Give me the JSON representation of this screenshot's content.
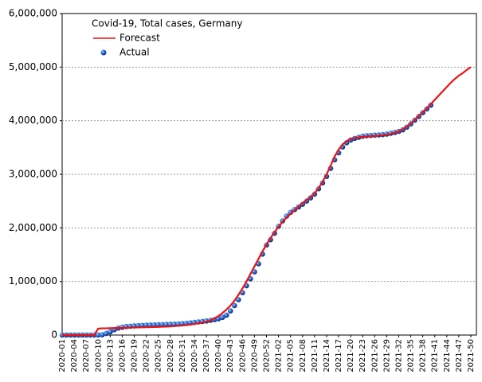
{
  "chart_data": {
    "type": "line-scatter",
    "title": "Covid-19, Total cases, Germany",
    "categories": [
      "2020-01",
      null,
      null,
      "2020-04",
      null,
      null,
      "2020-07",
      null,
      null,
      "2020-10",
      null,
      null,
      "2020-13",
      null,
      null,
      "2020-16",
      null,
      null,
      "2020-19",
      null,
      null,
      "2020-22",
      null,
      null,
      "2020-25",
      null,
      null,
      "2020-28",
      null,
      null,
      "2020-31",
      null,
      null,
      "2020-34",
      null,
      null,
      "2020-37",
      null,
      null,
      "2020-40",
      null,
      null,
      "2020-43",
      null,
      null,
      "2020-46",
      null,
      null,
      "2020-49",
      null,
      null,
      "2020-52",
      null,
      null,
      "2021-02",
      null,
      null,
      "2021-05",
      null,
      null,
      "2021-08",
      null,
      null,
      "2021-11",
      null,
      null,
      "2021-14",
      null,
      null,
      "2021-17",
      null,
      null,
      "2021-20",
      null,
      null,
      "2021-23",
      null,
      null,
      "2021-26",
      null,
      null,
      "2021-29",
      null,
      null,
      "2021-32",
      null,
      null,
      "2021-35",
      null,
      null,
      "2021-38",
      null,
      null,
      "2021-41",
      null,
      null,
      "2021-44",
      null,
      null,
      "2021-47",
      null,
      null,
      "2021-50"
    ],
    "series": [
      {
        "name": "Forecast",
        "color": "#ee1111",
        "style": "line",
        "values": [
          0,
          0,
          0,
          0,
          0,
          0,
          0,
          0,
          0,
          120000,
          125000,
          125000,
          128000,
          130000,
          132000,
          134000,
          136000,
          138000,
          140000,
          142000,
          144000,
          146000,
          148000,
          150000,
          152000,
          155000,
          158000,
          162000,
          167000,
          172000,
          178000,
          185000,
          195000,
          205000,
          218000,
          232000,
          250000,
          275000,
          310000,
          355000,
          410000,
          475000,
          550000,
          640000,
          750000,
          870000,
          1000000,
          1140000,
          1280000,
          1420000,
          1560000,
          1690000,
          1810000,
          1920000,
          2020000,
          2110000,
          2190000,
          2260000,
          2330000,
          2400000,
          2460000,
          2520000,
          2580000,
          2650000,
          2740000,
          2860000,
          3000000,
          3160000,
          3330000,
          3460000,
          3560000,
          3620000,
          3660000,
          3680000,
          3690000,
          3700000,
          3705000,
          3710000,
          3715000,
          3720000,
          3730000,
          3740000,
          3755000,
          3775000,
          3800000,
          3840000,
          3890000,
          3950000,
          4020000,
          4090000,
          4160000,
          4230000,
          4310000,
          4390000,
          4470000,
          4550000,
          4630000,
          4710000,
          4780000,
          4840000,
          4890000,
          4950000,
          5000000
        ]
      },
      {
        "name": "Actual",
        "color": "#2a6fd6",
        "style": "dots",
        "values": [
          0,
          0,
          0,
          0,
          0,
          0,
          0,
          0,
          0,
          1000,
          5000,
          30000,
          60000,
          100000,
          130000,
          145000,
          158000,
          165000,
          171000,
          176000,
          180000,
          183000,
          186000,
          188000,
          193000,
          195000,
          198000,
          201000,
          204000,
          208000,
          213000,
          219000,
          228000,
          237000,
          245000,
          253000,
          262000,
          274000,
          287000,
          304000,
          330000,
          370000,
          450000,
          550000,
          660000,
          790000,
          920000,
          1050000,
          1180000,
          1330000,
          1510000,
          1680000,
          1780000,
          1900000,
          2030000,
          2130000,
          2220000,
          2290000,
          2340000,
          2390000,
          2440000,
          2500000,
          2560000,
          2630000,
          2730000,
          2840000,
          2960000,
          3110000,
          3270000,
          3400000,
          3510000,
          3590000,
          3640000,
          3670000,
          3690000,
          3710000,
          3720000,
          3725000,
          3730000,
          3735000,
          3740000,
          3750000,
          3765000,
          3780000,
          3800000,
          3830000,
          3880000,
          3940000,
          4010000,
          4080000,
          4150000,
          4220000,
          4290000,
          null,
          null,
          null,
          null,
          null,
          null,
          null,
          null,
          null,
          null
        ]
      }
    ],
    "ylim": [
      0,
      6000000
    ],
    "yticks": [
      0,
      {
        "value": 1000000,
        "label": "1,000,000"
      },
      {
        "value": 2000000,
        "label": "2,000,000"
      },
      {
        "value": 3000000,
        "label": "3,000,000"
      },
      {
        "value": 4000000,
        "label": "4,000,000"
      },
      {
        "value": 5000000,
        "label": "5,000,000"
      },
      {
        "value": 6000000,
        "label": "6,000,000"
      }
    ],
    "grid": true
  }
}
